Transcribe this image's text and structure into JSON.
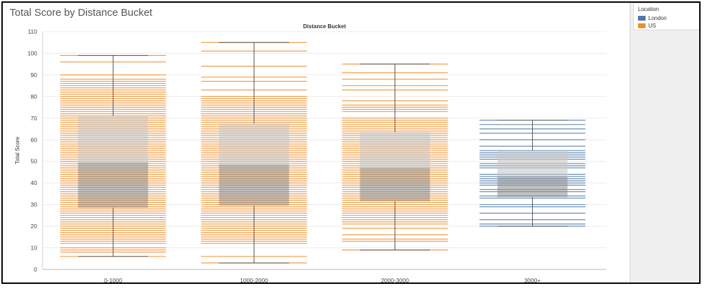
{
  "title": "Total Score by Distance Bucket",
  "legend": {
    "title": "Location",
    "items": [
      {
        "label": "London",
        "color": "#4e79a7"
      },
      {
        "label": "US",
        "color": "#f28e2b"
      }
    ]
  },
  "chart_data": {
    "type": "box",
    "title": "Distance Bucket",
    "xlabel": "",
    "ylabel": "Total Score",
    "ylim": [
      0,
      110
    ],
    "yticks": [
      0,
      10,
      20,
      30,
      40,
      50,
      60,
      70,
      80,
      90,
      100,
      110
    ],
    "grid": true,
    "legend_position": "right",
    "categories": [
      "0-1000",
      "1000-2000",
      "2000-3000",
      "3000+"
    ],
    "boxes": [
      {
        "category": "0-1000",
        "location": "US",
        "min": 6,
        "q1": 28.5,
        "median": 49.5,
        "q3": 71,
        "max": 99,
        "points": [
          6,
          8,
          9,
          10,
          12,
          13,
          14,
          15,
          16,
          17,
          18,
          19,
          20,
          21,
          22,
          23,
          24,
          25,
          26,
          27,
          28,
          29,
          30,
          31,
          32,
          33,
          34,
          35,
          36,
          37,
          38,
          39,
          40,
          41,
          42,
          43,
          44,
          45,
          46,
          47,
          48,
          49,
          50,
          51,
          52,
          53,
          54,
          55,
          56,
          57,
          58,
          59,
          60,
          61,
          62,
          63,
          64,
          65,
          66,
          67,
          68,
          69,
          70,
          71,
          72,
          73,
          74,
          75,
          76,
          77,
          78,
          79,
          80,
          81,
          82,
          83,
          84,
          85,
          86,
          87,
          88,
          90,
          96,
          99
        ]
      },
      {
        "category": "1000-2000",
        "location": "US",
        "min": 3,
        "q1": 29.5,
        "median": 48.5,
        "q3": 67.5,
        "max": 105,
        "points": [
          3,
          6,
          12,
          13,
          14,
          15,
          16,
          17,
          18,
          19,
          20,
          21,
          22,
          23,
          24,
          25,
          26,
          27,
          28,
          29,
          30,
          31,
          32,
          33,
          34,
          35,
          36,
          37,
          38,
          39,
          40,
          41,
          42,
          43,
          44,
          45,
          46,
          47,
          48,
          49,
          50,
          51,
          52,
          53,
          54,
          55,
          56,
          57,
          58,
          59,
          60,
          61,
          62,
          63,
          64,
          65,
          66,
          67,
          68,
          69,
          70,
          71,
          72,
          73,
          74,
          75,
          76,
          77,
          78,
          79,
          80,
          83,
          87,
          89,
          94,
          101,
          105
        ]
      },
      {
        "category": "2000-3000",
        "location": "US",
        "min": 9,
        "q1": 31.5,
        "median": 47,
        "q3": 63.5,
        "max": 95,
        "points": [
          9,
          13,
          14,
          16,
          19,
          21,
          22,
          23,
          24,
          25,
          26,
          27,
          28,
          29,
          30,
          31,
          32,
          33,
          34,
          35,
          36,
          37,
          38,
          39,
          40,
          41,
          42,
          43,
          44,
          45,
          46,
          47,
          48,
          49,
          50,
          51,
          52,
          53,
          54,
          55,
          56,
          57,
          58,
          59,
          60,
          61,
          62,
          63,
          64,
          65,
          66,
          67,
          68,
          69,
          70,
          73,
          74,
          75,
          76,
          78,
          83,
          85,
          88,
          91,
          95
        ]
      },
      {
        "category": "3000+",
        "location": "London",
        "min": 20,
        "q1": 33.5,
        "median": 43,
        "q3": 55,
        "max": 69,
        "points": [
          20,
          21,
          23,
          26,
          29,
          30,
          33,
          34,
          36,
          37,
          39,
          40,
          41,
          42,
          43,
          44,
          47,
          48,
          49,
          51,
          52,
          53,
          54,
          55,
          57,
          60,
          63,
          65,
          67,
          69
        ]
      }
    ]
  }
}
